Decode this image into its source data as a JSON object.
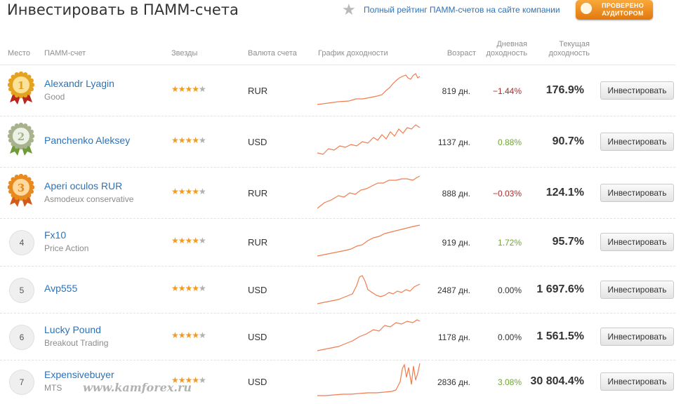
{
  "title": "Инвестировать в ПАММ-счета",
  "top_link": "Полный рейтинг ПАММ-счетов на сайте компании",
  "audit_badge": [
    "ПРОВЕРЕНО",
    "АУДИТОРОМ"
  ],
  "headers": {
    "place": "Место",
    "account": "ПАММ-счет",
    "stars": "Звезды",
    "currency": "Валюта счета",
    "chart": "График доходности",
    "age": "Возраст",
    "daily": [
      "Дневная",
      "доходность"
    ],
    "current": [
      "Текущая",
      "доходность"
    ]
  },
  "colors": {
    "link": "#2d72b8",
    "negative": "#b02a2a",
    "positive": "#6fa630",
    "neutral": "#333333",
    "spark": "#ef7d50",
    "star": "#f29b21"
  },
  "rows": [
    {
      "rank": "1",
      "medal": "gold",
      "name": "Alexandr Lyagin",
      "sub": "Good",
      "stars": "★★★★",
      "stars_half": "★",
      "rating": 4.5,
      "currency": "RUR",
      "age": "819 дн.",
      "daily": "−1.44%",
      "daily_sign": "negative",
      "total": "176.9%",
      "button": "Инвестировать"
    },
    {
      "rank": "2",
      "medal": "silver",
      "name": "Panchenko Aleksey",
      "sub": "",
      "stars": "★★★★",
      "stars_half": "★",
      "rating": 4.5,
      "currency": "USD",
      "age": "1137 дн.",
      "daily": "0.88%",
      "daily_sign": "positive",
      "total": "90.7%",
      "button": "Инвестировать"
    },
    {
      "rank": "3",
      "medal": "bronze",
      "name": "Aperi oculos RUR",
      "sub": "Asmodeux conservative",
      "stars": "★★★★",
      "stars_half": "★",
      "rating": 4.5,
      "currency": "RUR",
      "age": "888 дн.",
      "daily": "−0.03%",
      "daily_sign": "negative",
      "total": "124.1%",
      "button": "Инвестировать"
    },
    {
      "rank": "4",
      "medal": "",
      "name": "Fx10",
      "sub": "Price Action",
      "stars": "★★★★",
      "stars_half": "★",
      "rating": 4.5,
      "currency": "RUR",
      "age": "919 дн.",
      "daily": "1.72%",
      "daily_sign": "positive",
      "total": "95.7%",
      "button": "Инвестировать"
    },
    {
      "rank": "5",
      "medal": "",
      "name": "Avp555",
      "sub": "",
      "stars": "★★★★",
      "stars_half": "★",
      "rating": 4.5,
      "currency": "USD",
      "age": "2487 дн.",
      "daily": "0.00%",
      "daily_sign": "neutral",
      "total": "1 697.6%",
      "button": "Инвестировать"
    },
    {
      "rank": "6",
      "medal": "",
      "name": "Lucky Pound",
      "sub": "Breakout Trading",
      "stars": "★★★★",
      "stars_half": "★",
      "rating": 4.5,
      "currency": "USD",
      "age": "1178 дн.",
      "daily": "0.00%",
      "daily_sign": "neutral",
      "total": "1 561.5%",
      "button": "Инвестировать"
    },
    {
      "rank": "7",
      "medal": "",
      "name": "Expensivebuyer",
      "sub": "MTS",
      "stars": "★★★★",
      "stars_half": "★",
      "rating": 4.5,
      "currency": "USD",
      "age": "2836 дн.",
      "daily": "3.08%",
      "daily_sign": "positive",
      "total": "30 804.4%",
      "button": "Инвестировать"
    }
  ],
  "watermark": "www.kamforex.ru"
}
